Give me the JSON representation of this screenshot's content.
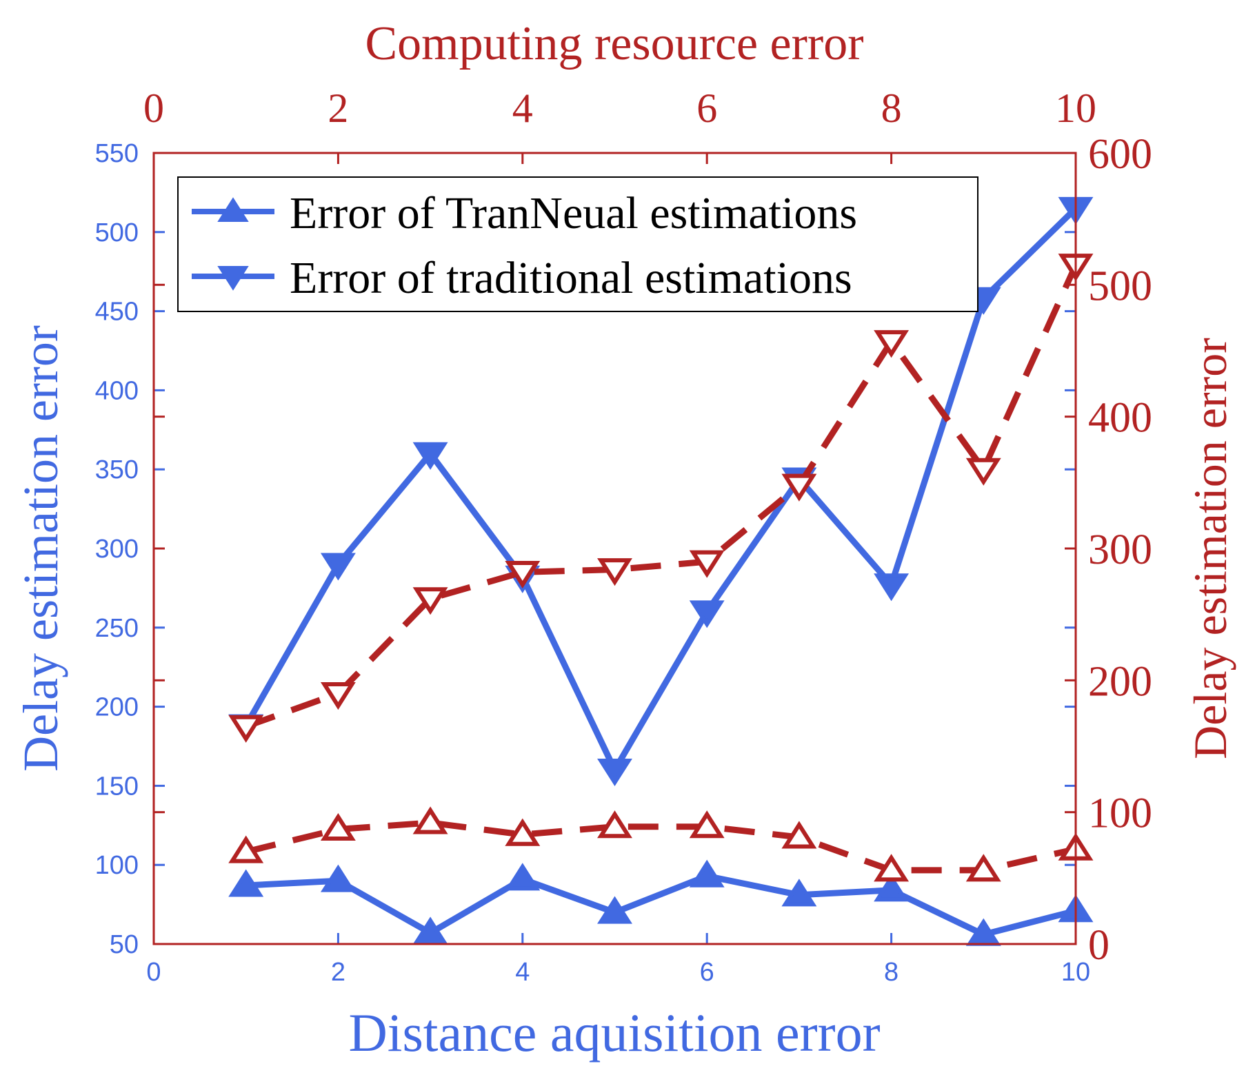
{
  "chart_data": {
    "type": "line",
    "title": "",
    "axes": {
      "bottom": {
        "label": "Distance aquisition error",
        "range": [
          0,
          10
        ],
        "ticks": [
          0,
          2,
          4,
          6,
          8,
          10
        ],
        "color": "#4169e1"
      },
      "top": {
        "label": "Computing resource error",
        "range": [
          0,
          10
        ],
        "ticks": [
          0,
          2,
          4,
          6,
          8,
          10
        ],
        "color": "#b22222"
      },
      "left": {
        "label": "Delay estimation error",
        "range": [
          50,
          550
        ],
        "ticks": [
          50,
          100,
          150,
          200,
          250,
          300,
          350,
          400,
          450,
          500,
          550
        ],
        "color": "#4169e1"
      },
      "right": {
        "label": "Delay estimation error",
        "range": [
          0,
          600
        ],
        "ticks": [
          0,
          100,
          200,
          300,
          400,
          500,
          600
        ],
        "color": "#b22222"
      }
    },
    "legend": {
      "placement": "top-left",
      "entries": [
        {
          "label": "Error of TranNeual estimations",
          "marker": "triangle-up"
        },
        {
          "label": "Error of traditional estimations",
          "marker": "triangle-down"
        }
      ]
    },
    "series": [
      {
        "axes": "bottom-left",
        "style": "solid",
        "marker": "triangle-up",
        "color": "#4169e1",
        "x": [
          1,
          2,
          3,
          4,
          5,
          6,
          7,
          8,
          9,
          10
        ],
        "y": [
          87,
          90,
          57,
          91,
          70,
          93,
          81,
          84,
          56,
          71
        ]
      },
      {
        "axes": "bottom-left",
        "style": "solid",
        "marker": "triangle-down",
        "color": "#4169e1",
        "x": [
          1,
          2,
          3,
          4,
          5,
          6,
          7,
          8,
          9,
          10
        ],
        "y": [
          188,
          290,
          360,
          282,
          160,
          260,
          344,
          277,
          458,
          515
        ]
      },
      {
        "axes": "top-right",
        "style": "dashed",
        "marker": "triangle-up",
        "color": "#b22222",
        "x": [
          1,
          2,
          3,
          4,
          5,
          6,
          7,
          8,
          9,
          10
        ],
        "y": [
          70,
          87,
          92,
          83,
          89,
          89,
          81,
          56,
          56,
          72
        ]
      },
      {
        "axes": "top-right",
        "style": "dashed",
        "marker": "triangle-down",
        "color": "#b22222",
        "x": [
          1,
          2,
          3,
          4,
          5,
          6,
          7,
          8,
          9,
          10
        ],
        "y": [
          165,
          190,
          262,
          282,
          284,
          290,
          348,
          457,
          360,
          515
        ]
      }
    ]
  }
}
